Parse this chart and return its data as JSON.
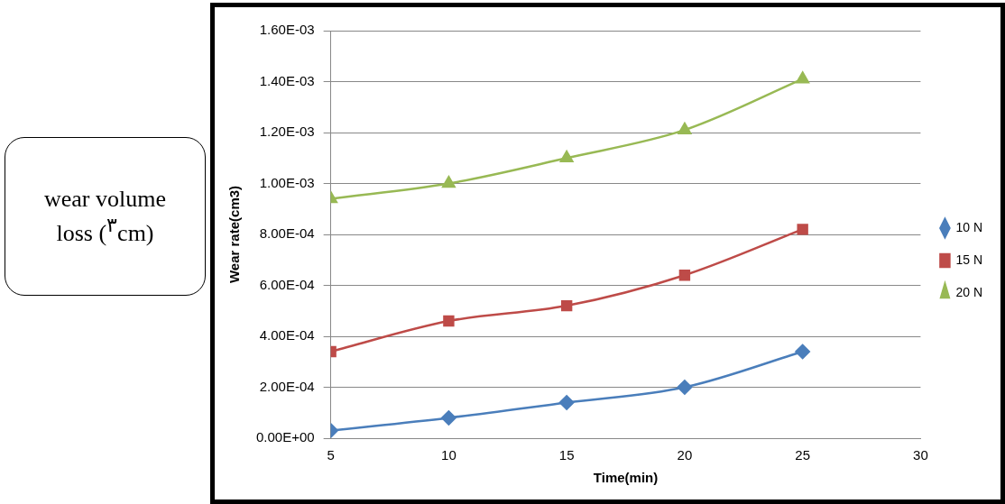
{
  "chart_data": {
    "type": "line",
    "xlabel": "Time(min)",
    "ylabel": "Wear rate(cm3)",
    "annotations": [
      "wear volume loss ($^{٣}$cm)"
    ],
    "x": [
      5,
      10,
      15,
      20,
      25
    ],
    "xlim": [
      5,
      30
    ],
    "xticks": [
      5,
      10,
      15,
      20,
      25,
      30
    ],
    "ylim": [
      0,
      0.0016
    ],
    "yticks": [
      {
        "value": 0,
        "label": "0.00E+00"
      },
      {
        "value": 0.0002,
        "label": "2.00E-04"
      },
      {
        "value": 0.0004,
        "label": "4.00E-04"
      },
      {
        "value": 0.0006,
        "label": "6.00E-04"
      },
      {
        "value": 0.0008,
        "label": "8.00E-04"
      },
      {
        "value": 0.001,
        "label": "1.00E-03"
      },
      {
        "value": 0.0012,
        "label": "1.20E-03"
      },
      {
        "value": 0.0014,
        "label": "1.40E-03"
      },
      {
        "value": 0.0016,
        "label": "1.60E-03"
      }
    ],
    "grid": "y",
    "legend": "right",
    "series": [
      {
        "name": "10 N",
        "color": "#4a7ebb",
        "marker": "diamond",
        "values": [
          3e-05,
          8e-05,
          0.00014,
          0.0002,
          0.00034
        ]
      },
      {
        "name": "15 N",
        "color": "#be4b48",
        "marker": "square",
        "values": [
          0.00034,
          0.00046,
          0.00052,
          0.00064,
          0.00082
        ]
      },
      {
        "name": "20 N",
        "color": "#98b954",
        "marker": "triangle",
        "values": [
          0.00094,
          0.001,
          0.0011,
          0.00121,
          0.00141
        ]
      }
    ]
  }
}
